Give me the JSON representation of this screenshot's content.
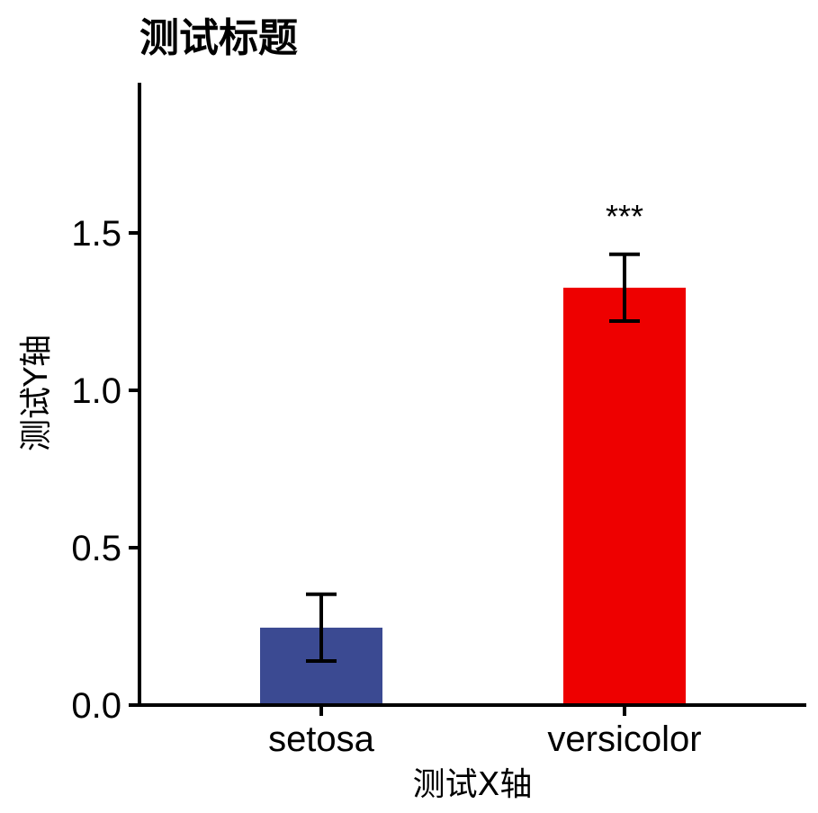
{
  "chart_data": {
    "type": "bar",
    "title": "测试标题",
    "xlabel": "测试X轴",
    "ylabel": "测试Y轴",
    "categories": [
      "setosa",
      "versicolor"
    ],
    "values": [
      0.246,
      1.326
    ],
    "error_low": [
      0.14,
      1.22
    ],
    "error_high": [
      0.352,
      1.432
    ],
    "colors": [
      "#3B4A92",
      "#EE0000"
    ],
    "annotations": [
      "",
      "***"
    ],
    "ylim": [
      0,
      1.95
    ],
    "yticks": [
      0.0,
      0.5,
      1.0,
      1.5
    ],
    "ytick_labels": [
      "0.0",
      "0.5",
      "1.0",
      "1.5"
    ],
    "grid": false,
    "legend": "none"
  }
}
